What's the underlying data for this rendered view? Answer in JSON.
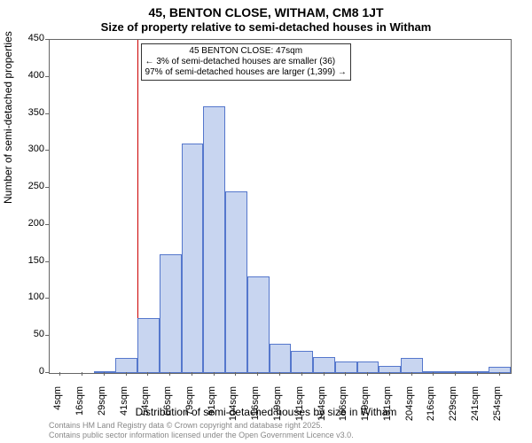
{
  "chart": {
    "type": "histogram",
    "title": "45, BENTON CLOSE, WITHAM, CM8 1JT",
    "subtitle": "Size of property relative to semi-detached houses in Witham",
    "ylabel": "Number of semi-detached properties",
    "xlabel": "Distribution of semi-detached houses by size in Witham",
    "title_fontsize": 14,
    "subtitle_fontsize": 13,
    "label_fontsize": 12,
    "tick_fontsize": 11,
    "ylim": [
      0,
      450
    ],
    "ytick_step": 50,
    "yticks": [
      0,
      50,
      100,
      150,
      200,
      250,
      300,
      350,
      400,
      450
    ],
    "xticks": [
      "4sqm",
      "16sqm",
      "29sqm",
      "41sqm",
      "54sqm",
      "66sqm",
      "79sqm",
      "91sqm",
      "104sqm",
      "116sqm",
      "129sqm",
      "141sqm",
      "154sqm",
      "166sqm",
      "179sqm",
      "191sqm",
      "204sqm",
      "216sqm",
      "229sqm",
      "241sqm",
      "254sqm"
    ],
    "bar_values": [
      0,
      0,
      2,
      20,
      74,
      160,
      310,
      360,
      245,
      130,
      39,
      30,
      21,
      15,
      15,
      10,
      20,
      3,
      2,
      2,
      8
    ],
    "bar_fill_color": "#c8d5f0",
    "bar_border_color": "#5577cc",
    "background_color": "#ffffff",
    "axis_color": "#666666",
    "reference_line": {
      "value": "47sqm",
      "color": "#cc0000",
      "position_index": 3.48
    },
    "annotation": {
      "line1": "45 BENTON CLOSE: 47sqm",
      "line2": "← 3% of semi-detached houses are smaller (36)",
      "line3": "97% of semi-detached houses are larger (1,399) →",
      "fontsize": 10
    },
    "footer_line1": "Contains HM Land Registry data © Crown copyright and database right 2025.",
    "footer_line2": "Contains public sector information licensed under the Open Government Licence v3.0."
  }
}
